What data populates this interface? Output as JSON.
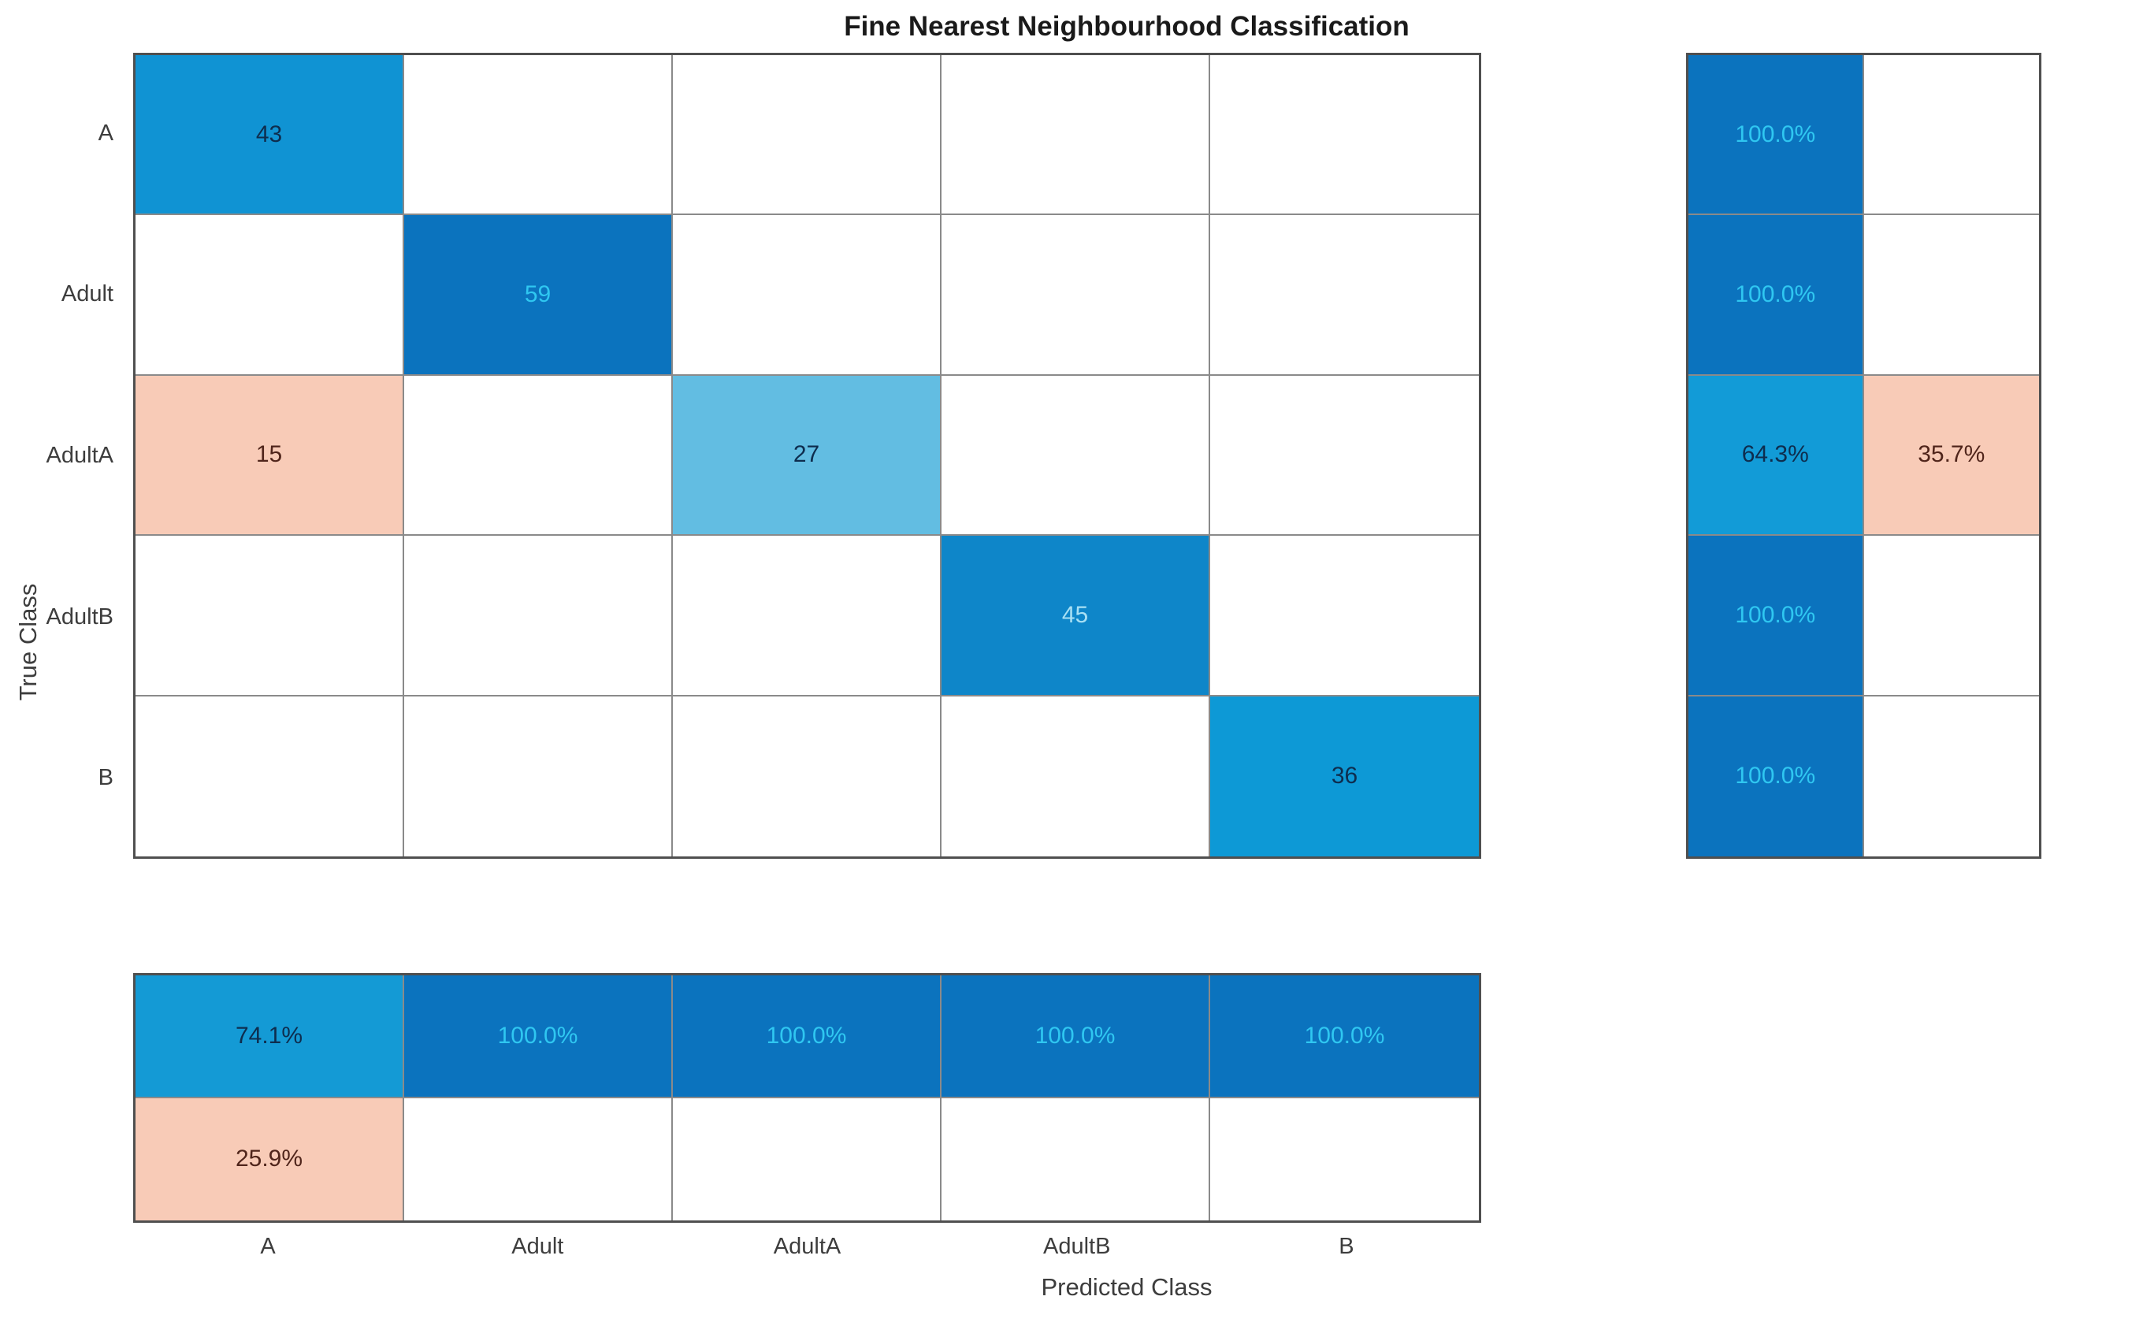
{
  "title": "Fine Nearest Neighbourhood Classification",
  "axes": {
    "xlabel": "Predicted Class",
    "ylabel": "True Class"
  },
  "classes": [
    "A",
    "Adult",
    "AdultA",
    "AdultB",
    "B"
  ],
  "colors": {
    "diagonal_dark_blue": "#0b73be",
    "diagonal_mid_blue": "#1093d3",
    "diagonal_light_blue": "#62bde2",
    "off_diagonal_salmon": "#f8cbb7",
    "summary_blue": "#129bd7",
    "text_cyan": "#2fc7f1",
    "text_pale_cyan": "#a8e0f4",
    "text_dark_navy": "#0e2d4e",
    "text_dark_brown": "#50251b",
    "grid_line": "#8a8a8a",
    "outer_border": "#4f4f4f",
    "empty_cell": "#ffffff"
  },
  "chart_data": {
    "type": "heatmap",
    "subtype": "confusion-matrix",
    "title": "Fine Nearest Neighbourhood Classification",
    "xlabel": "Predicted Class",
    "ylabel": "True Class",
    "classes": [
      "A",
      "Adult",
      "AdultA",
      "AdultB",
      "B"
    ],
    "confusion_matrix_rows_true_by_predicted": [
      [
        43,
        0,
        0,
        0,
        0
      ],
      [
        0,
        59,
        0,
        0,
        0
      ],
      [
        15,
        0,
        27,
        0,
        0
      ],
      [
        0,
        0,
        0,
        45,
        0
      ],
      [
        0,
        0,
        0,
        0,
        36
      ]
    ],
    "row_summary_true_positive_rate": [
      "100.0%",
      "100.0%",
      "64.3%",
      "100.0%",
      "100.0%"
    ],
    "row_summary_false_negative_rate": [
      "",
      "",
      "35.7%",
      "",
      ""
    ],
    "column_summary_positive_predictive_value": [
      "74.1%",
      "100.0%",
      "100.0%",
      "100.0%",
      "100.0%"
    ],
    "column_summary_false_discovery_rate": [
      "25.9%",
      "",
      "",
      "",
      ""
    ],
    "legend_position": "none",
    "grid": true
  },
  "cells": {
    "matrix": [
      [
        {
          "t": "43",
          "bg": "#1093d3",
          "fg": "#0e2d4e"
        },
        {},
        {},
        {},
        {}
      ],
      [
        {},
        {
          "t": "59",
          "bg": "#0b73be",
          "fg": "#2fc7f1"
        },
        {},
        {},
        {}
      ],
      [
        {
          "t": "15",
          "bg": "#f8cbb7",
          "fg": "#50251b"
        },
        {},
        {
          "t": "27",
          "bg": "#62bde2",
          "fg": "#0e2d4e"
        },
        {},
        {}
      ],
      [
        {},
        {},
        {},
        {
          "t": "45",
          "bg": "#0e86c9",
          "fg": "#a8e0f4"
        },
        {}
      ],
      [
        {},
        {},
        {},
        {},
        {
          "t": "36",
          "bg": "#0d99d6",
          "fg": "#0e2d4e"
        }
      ]
    ],
    "row_summary": [
      [
        {
          "t": "100.0%",
          "bg": "#0b73be",
          "fg": "#2fc7f1"
        },
        {}
      ],
      [
        {
          "t": "100.0%",
          "bg": "#0b73be",
          "fg": "#2fc7f1"
        },
        {}
      ],
      [
        {
          "t": "64.3%",
          "bg": "#129bd7",
          "fg": "#0e2d4e"
        },
        {
          "t": "35.7%",
          "bg": "#f8cbb7",
          "fg": "#50251b"
        }
      ],
      [
        {
          "t": "100.0%",
          "bg": "#0b73be",
          "fg": "#2fc7f1"
        },
        {}
      ],
      [
        {
          "t": "100.0%",
          "bg": "#0b73be",
          "fg": "#2fc7f1"
        },
        {}
      ]
    ],
    "col_summary": [
      [
        {
          "t": "74.1%",
          "bg": "#149ad5",
          "fg": "#0e2d4e"
        },
        {
          "t": "100.0%",
          "bg": "#0b73be",
          "fg": "#2fc7f1"
        },
        {
          "t": "100.0%",
          "bg": "#0b73be",
          "fg": "#2fc7f1"
        },
        {
          "t": "100.0%",
          "bg": "#0b73be",
          "fg": "#2fc7f1"
        },
        {
          "t": "100.0%",
          "bg": "#0b73be",
          "fg": "#2fc7f1"
        }
      ],
      [
        {
          "t": "25.9%",
          "bg": "#f8cbb7",
          "fg": "#50251b"
        },
        {},
        {},
        {},
        {}
      ]
    ]
  }
}
